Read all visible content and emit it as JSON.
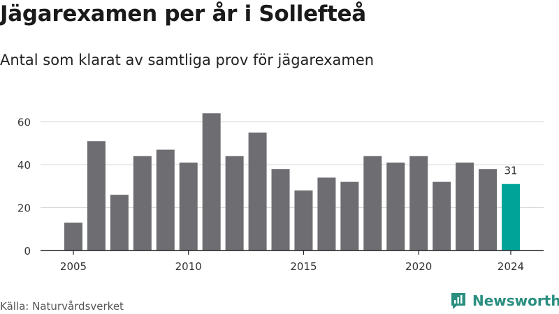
{
  "title": "Jägarexamen per år i Sollefteå",
  "subtitle": "Antal som klarat av samtliga prov för jägarexamen",
  "source": "Källa: Naturvårdsverket",
  "brand": {
    "name": "Newsworthy",
    "color": "#2a8f80"
  },
  "colors": {
    "bar": "#6e6d72",
    "highlight": "#00a398",
    "grid": "#d9d9d9",
    "axis": "#222222"
  },
  "chart_data": {
    "type": "bar",
    "title": "Jägarexamen per år i Sollefteå",
    "subtitle": "Antal som klarat av samtliga prov för jägarexamen",
    "x": [
      2005,
      2006,
      2007,
      2008,
      2009,
      2010,
      2011,
      2012,
      2013,
      2014,
      2015,
      2016,
      2017,
      2018,
      2019,
      2020,
      2021,
      2022,
      2023,
      2024
    ],
    "values": [
      13,
      51,
      26,
      44,
      47,
      41,
      64,
      44,
      55,
      38,
      28,
      34,
      32,
      44,
      41,
      44,
      32,
      41,
      38,
      31
    ],
    "highlight_index": 19,
    "highlight_label": "31",
    "x_ticks": [
      2005,
      2010,
      2015,
      2020,
      2024
    ],
    "y_ticks": [
      0,
      20,
      40,
      60
    ],
    "ylim": [
      0,
      68
    ],
    "grid": true,
    "xlabel": "",
    "ylabel": ""
  }
}
